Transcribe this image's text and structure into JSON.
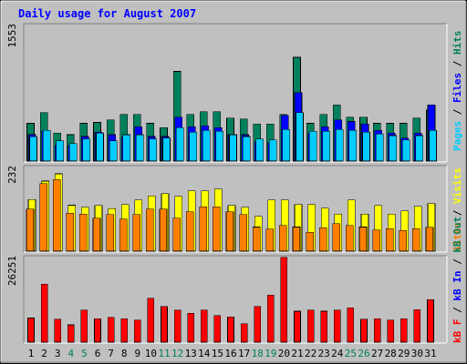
{
  "chart_data": [
    {
      "type": "bar",
      "title": "Daily usage for August 2007",
      "categories": [
        "1",
        "2",
        "3",
        "4",
        "5",
        "6",
        "7",
        "8",
        "9",
        "10",
        "11",
        "12",
        "13",
        "14",
        "15",
        "16",
        "17",
        "18",
        "19",
        "20",
        "21",
        "22",
        "23",
        "24",
        "25",
        "26",
        "27",
        "28",
        "29",
        "30",
        "31"
      ],
      "weekend_days": [
        "4",
        "5",
        "11",
        "12",
        "18",
        "19",
        "25",
        "26"
      ],
      "ymax_label": "1553",
      "ylim": [
        0,
        1553
      ],
      "series": [
        {
          "name": "Pages",
          "color": "#00ccff",
          "values": [
            275,
            350,
            230,
            200,
            250,
            320,
            230,
            300,
            300,
            250,
            260,
            380,
            330,
            350,
            340,
            300,
            280,
            250,
            240,
            360,
            550,
            340,
            340,
            360,
            350,
            330,
            310,
            290,
            240,
            290,
            350
          ]
        },
        {
          "name": "Files",
          "color": "#0000ff",
          "values": [
            300,
            340,
            180,
            180,
            280,
            330,
            300,
            270,
            390,
            280,
            280,
            500,
            390,
            400,
            380,
            300,
            300,
            220,
            210,
            520,
            780,
            320,
            390,
            470,
            450,
            420,
            350,
            320,
            260,
            320,
            640
          ]
        },
        {
          "name": "Hits",
          "color": "#00805c",
          "values": [
            430,
            550,
            320,
            300,
            430,
            440,
            470,
            530,
            530,
            430,
            380,
            1020,
            530,
            560,
            560,
            490,
            480,
            420,
            420,
            530,
            1180,
            430,
            530,
            640,
            500,
            500,
            430,
            430,
            430,
            490,
            580
          ]
        }
      ],
      "legend_placement": "right"
    },
    {
      "type": "bar",
      "categories": [
        "1",
        "2",
        "3",
        "4",
        "5",
        "6",
        "7",
        "8",
        "9",
        "10",
        "11",
        "12",
        "13",
        "14",
        "15",
        "16",
        "17",
        "18",
        "19",
        "20",
        "21",
        "22",
        "23",
        "24",
        "25",
        "26",
        "27",
        "28",
        "29",
        "30",
        "31"
      ],
      "ymax_label": "232",
      "ylim": [
        0,
        232
      ],
      "series": [
        {
          "name": "Sites",
          "color": "#ff8000",
          "values": [
            115,
            185,
            196,
            104,
            102,
            90,
            100,
            88,
            100,
            115,
            115,
            90,
            108,
            122,
            122,
            108,
            100,
            66,
            60,
            70,
            66,
            52,
            64,
            75,
            70,
            66,
            58,
            62,
            57,
            62,
            65
          ]
        },
        {
          "name": "Visits",
          "color": "#ffff00",
          "values": [
            142,
            192,
            212,
            126,
            120,
            125,
            117,
            128,
            140,
            152,
            158,
            150,
            165,
            165,
            170,
            125,
            120,
            95,
            140,
            140,
            128,
            128,
            118,
            102,
            140,
            102,
            125,
            102,
            110,
            123,
            130
          ]
        }
      ],
      "legend_placement": "right"
    },
    {
      "type": "bar",
      "categories": [
        "1",
        "2",
        "3",
        "4",
        "5",
        "6",
        "7",
        "8",
        "9",
        "10",
        "11",
        "12",
        "13",
        "14",
        "15",
        "16",
        "17",
        "18",
        "19",
        "20",
        "21",
        "22",
        "23",
        "24",
        "25",
        "26",
        "27",
        "28",
        "29",
        "30",
        "31"
      ],
      "ymax_label": "26251",
      "ylim": [
        0,
        26251
      ],
      "series": [
        {
          "name": "kB F",
          "color": "#ff0000",
          "values": [
            7400,
            17800,
            7000,
            5300,
            9800,
            7200,
            7600,
            7200,
            6800,
            13500,
            11000,
            9800,
            8900,
            9800,
            8200,
            7800,
            5700,
            11000,
            14500,
            26000,
            9500,
            9800,
            9500,
            9800,
            10500,
            7000,
            7200,
            6800,
            7200,
            10000,
            13000
          ]
        },
        {
          "name": "kB In",
          "color": "#0000ff",
          "values": [
            0,
            0,
            0,
            0,
            0,
            0,
            0,
            0,
            0,
            0,
            0,
            0,
            0,
            0,
            0,
            0,
            0,
            0,
            0,
            0,
            0,
            0,
            0,
            0,
            0,
            0,
            0,
            0,
            0,
            0,
            0
          ]
        },
        {
          "name": "kB Out",
          "color": "#00805c",
          "values": [
            0,
            0,
            0,
            0,
            0,
            0,
            0,
            0,
            0,
            0,
            0,
            0,
            0,
            0,
            0,
            0,
            0,
            0,
            0,
            0,
            0,
            0,
            0,
            0,
            0,
            0,
            0,
            0,
            0,
            0,
            0
          ]
        }
      ],
      "legend_placement": "right"
    }
  ],
  "colors": {
    "title": "#0000ff",
    "weekday_label": "#000000",
    "weekend_label": "#00805c",
    "legend_separator": "#000000",
    "panel_bg": "#c0c0c0",
    "frame_bg": "#ffffff"
  }
}
